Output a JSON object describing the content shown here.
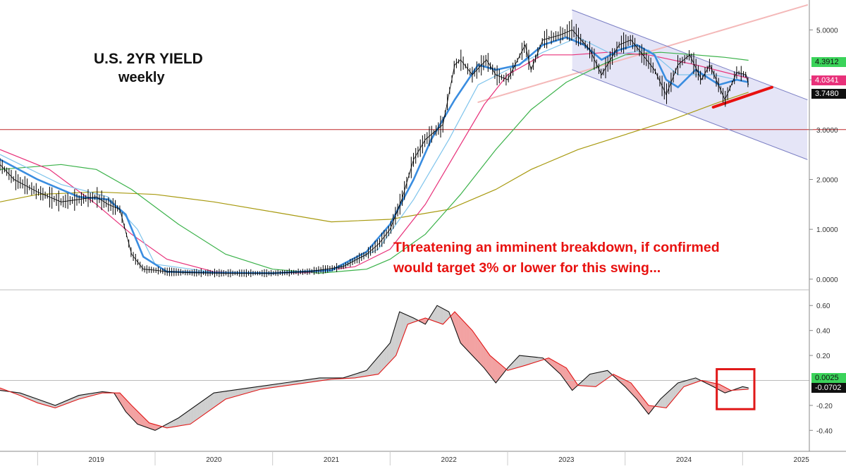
{
  "chart_data": [
    {
      "type": "line",
      "panel": "price",
      "title": "U.S. 2YR YIELD",
      "subtitle": "weekly",
      "ylim": [
        -0.2,
        5.6
      ],
      "y_ticks": [
        "5.0000",
        "4.0000",
        "3.0000",
        "2.0000",
        "1.0000",
        "0.0000"
      ],
      "y_tick_values": [
        5,
        4,
        3,
        2,
        1,
        0
      ],
      "xlim": [
        2018.68,
        2025.55
      ],
      "x_ticks": [
        "2019",
        "2020",
        "2021",
        "2022",
        "2023",
        "2024",
        "2025"
      ],
      "x_tick_values": [
        2019,
        2020,
        2021,
        2022,
        2023,
        2024,
        2025
      ],
      "series": [
        {
          "name": "2YR Yield (weekly)",
          "color": "#000000",
          "x": [
            2018.68,
            2018.8,
            2019.0,
            2019.2,
            2019.35,
            2019.5,
            2019.6,
            2019.7,
            2019.8,
            2019.9,
            2020.0,
            2020.1,
            2020.2,
            2020.3,
            2020.6,
            2020.9,
            2021.0,
            2021.3,
            2021.6,
            2021.8,
            2021.9,
            2022.0,
            2022.1,
            2022.2,
            2022.3,
            2022.45,
            2022.55,
            2022.6,
            2022.7,
            2022.82,
            2022.9,
            2023.0,
            2023.15,
            2023.2,
            2023.3,
            2023.45,
            2023.55,
            2023.7,
            2023.8,
            2023.95,
            2024.05,
            2024.15,
            2024.25,
            2024.35,
            2024.45,
            2024.55,
            2024.65,
            2024.72,
            2024.85,
            2024.95,
            2025.03,
            2025.05
          ],
          "values": [
            2.3,
            2.0,
            1.75,
            1.55,
            1.6,
            1.65,
            1.5,
            1.4,
            0.5,
            0.2,
            0.18,
            0.15,
            0.14,
            0.13,
            0.12,
            0.12,
            0.12,
            0.15,
            0.25,
            0.5,
            0.7,
            1.0,
            1.6,
            2.4,
            2.8,
            3.1,
            4.3,
            4.4,
            4.1,
            4.4,
            4.1,
            4.0,
            4.7,
            4.2,
            4.8,
            4.9,
            5.0,
            4.6,
            4.1,
            4.7,
            4.8,
            4.5,
            4.2,
            3.7,
            4.3,
            4.5,
            4.0,
            4.3,
            3.6,
            4.15,
            4.1,
            3.9
          ]
        },
        {
          "name": "MA fast (blue)",
          "color": "#3a8de0",
          "x": [
            2018.68,
            2019.0,
            2019.35,
            2019.6,
            2019.75,
            2019.9,
            2020.1,
            2020.5,
            2021.0,
            2021.5,
            2021.8,
            2022.0,
            2022.2,
            2022.35,
            2022.55,
            2022.75,
            2022.9,
            2023.1,
            2023.3,
            2023.5,
            2023.65,
            2023.8,
            2023.95,
            2024.1,
            2024.25,
            2024.35,
            2024.45,
            2024.6,
            2024.8,
            2024.95,
            2025.05
          ],
          "values": [
            2.4,
            2.0,
            1.65,
            1.6,
            1.3,
            0.45,
            0.15,
            0.13,
            0.12,
            0.18,
            0.55,
            1.1,
            2.0,
            2.8,
            3.6,
            4.3,
            4.2,
            4.3,
            4.7,
            4.85,
            4.7,
            4.4,
            4.6,
            4.7,
            4.5,
            4.0,
            3.85,
            4.2,
            3.9,
            4.0,
            3.95
          ]
        },
        {
          "name": "MA (light blue)",
          "color": "#7fc4ec",
          "x": [
            2018.68,
            2019.2,
            2019.6,
            2019.85,
            2020.0,
            2020.5,
            2021.0,
            2021.5,
            2021.9,
            2022.2,
            2022.5,
            2022.75,
            2023.0,
            2023.3,
            2023.6,
            2023.9,
            2024.2,
            2024.45,
            2024.75,
            2025.05
          ],
          "values": [
            2.5,
            1.9,
            1.65,
            1.0,
            0.3,
            0.14,
            0.12,
            0.16,
            0.6,
            1.6,
            2.8,
            3.9,
            4.2,
            4.55,
            4.85,
            4.5,
            4.6,
            4.1,
            4.1,
            3.95
          ]
        },
        {
          "name": "MA (magenta)",
          "color": "#e8317a",
          "x": [
            2018.68,
            2019.1,
            2019.5,
            2019.8,
            2020.1,
            2020.5,
            2020.8,
            2021.0,
            2021.3,
            2021.7,
            2022.0,
            2022.3,
            2022.55,
            2022.8,
            2023.0,
            2023.3,
            2023.55,
            2023.85,
            2024.2,
            2024.6,
            2025.05
          ],
          "values": [
            2.6,
            2.2,
            1.5,
            0.9,
            0.4,
            0.15,
            0.12,
            0.12,
            0.13,
            0.25,
            0.6,
            1.5,
            2.5,
            3.5,
            4.1,
            4.5,
            4.5,
            4.55,
            4.5,
            4.3,
            4.03
          ]
        },
        {
          "name": "MA (green)",
          "color": "#3bb24a",
          "x": [
            2018.68,
            2019.2,
            2019.5,
            2019.8,
            2020.2,
            2020.6,
            2021.0,
            2021.4,
            2021.8,
            2022.0,
            2022.3,
            2022.6,
            2022.9,
            2023.2,
            2023.5,
            2023.8,
            2024.0,
            2024.3,
            2024.6,
            2024.85,
            2025.05
          ],
          "values": [
            2.2,
            2.3,
            2.2,
            1.8,
            1.1,
            0.5,
            0.2,
            0.12,
            0.2,
            0.4,
            0.9,
            1.7,
            2.6,
            3.4,
            3.95,
            4.3,
            4.5,
            4.55,
            4.5,
            4.45,
            4.39
          ]
        },
        {
          "name": "MA (olive)",
          "color": "#a89a10",
          "x": [
            2018.68,
            2019.0,
            2019.5,
            2020.0,
            2020.5,
            2021.0,
            2021.5,
            2022.0,
            2022.5,
            2022.9,
            2023.2,
            2023.6,
            2024.0,
            2024.4,
            2024.8,
            2025.05
          ],
          "values": [
            1.55,
            1.7,
            1.75,
            1.7,
            1.55,
            1.35,
            1.15,
            1.2,
            1.4,
            1.8,
            2.2,
            2.6,
            2.9,
            3.2,
            3.55,
            3.75
          ]
        }
      ],
      "trendlines": [
        {
          "name": "Long rising trendline (pink)",
          "color": "#f4b8b8",
          "x": [
            2022.75,
            2025.55
          ],
          "values": [
            3.55,
            5.5
          ]
        },
        {
          "name": "Falling channel upper",
          "color": "#7b7fc4",
          "x": [
            2023.55,
            2025.55
          ],
          "values": [
            5.4,
            3.6
          ]
        },
        {
          "name": "Falling channel lower",
          "color": "#7b7fc4",
          "x": [
            2023.55,
            2025.55
          ],
          "values": [
            4.2,
            2.4
          ]
        },
        {
          "name": "Short support (red)",
          "color": "#e8110f",
          "x": [
            2024.75,
            2025.25
          ],
          "values": [
            3.45,
            3.85
          ]
        }
      ],
      "horizontal_line": {
        "value": 3.0,
        "color": "#c0282a"
      },
      "last_value_labels": [
        {
          "text": "4.3912",
          "value": 4.3912,
          "bg": "#3bd35a"
        },
        {
          "text": "4.0341",
          "value": 4.0341,
          "bg": "#e8317a"
        },
        {
          "text": "3.7480",
          "value": 3.748,
          "bg": "#101010"
        }
      ]
    },
    {
      "type": "line",
      "panel": "oscillator",
      "ylim": [
        -0.5,
        0.72
      ],
      "y_ticks": [
        "0.60",
        "0.40",
        "0.20",
        "-0.20",
        "-0.40"
      ],
      "y_tick_values": [
        0.6,
        0.4,
        0.2,
        -0.2,
        -0.4
      ],
      "zero_line": 0,
      "series": [
        {
          "name": "Oscillator (black)",
          "color": "#111111",
          "x": [
            2018.68,
            2018.85,
            2019.0,
            2019.15,
            2019.35,
            2019.55,
            2019.65,
            2019.75,
            2019.85,
            2020.0,
            2020.2,
            2020.5,
            2020.8,
            2021.1,
            2021.4,
            2021.6,
            2021.8,
            2022.0,
            2022.08,
            2022.2,
            2022.3,
            2022.4,
            2022.5,
            2022.6,
            2022.7,
            2022.8,
            2022.9,
            2023.0,
            2023.1,
            2023.3,
            2023.45,
            2023.55,
            2023.7,
            2023.85,
            2024.0,
            2024.1,
            2024.2,
            2024.3,
            2024.45,
            2024.6,
            2024.75,
            2024.85,
            2025.0,
            2025.05
          ],
          "values": [
            -0.08,
            -0.1,
            -0.15,
            -0.2,
            -0.12,
            -0.09,
            -0.1,
            -0.25,
            -0.35,
            -0.4,
            -0.3,
            -0.1,
            -0.06,
            -0.02,
            0.02,
            0.02,
            0.08,
            0.3,
            0.55,
            0.5,
            0.45,
            0.6,
            0.55,
            0.3,
            0.2,
            0.1,
            -0.02,
            0.1,
            0.2,
            0.18,
            0.05,
            -0.08,
            0.05,
            0.08,
            -0.05,
            -0.15,
            -0.27,
            -0.15,
            -0.02,
            0.02,
            -0.05,
            -0.1,
            -0.05,
            -0.06
          ]
        },
        {
          "name": "Signal (red)",
          "color": "#e01818",
          "x": [
            2018.68,
            2018.85,
            2019.0,
            2019.15,
            2019.35,
            2019.55,
            2019.7,
            2019.8,
            2019.95,
            2020.1,
            2020.3,
            2020.6,
            2020.9,
            2021.2,
            2021.5,
            2021.7,
            2021.9,
            2022.05,
            2022.15,
            2022.3,
            2022.45,
            2022.55,
            2022.7,
            2022.85,
            2023.0,
            2023.15,
            2023.35,
            2023.5,
            2023.6,
            2023.75,
            2023.9,
            2024.05,
            2024.2,
            2024.35,
            2024.5,
            2024.65,
            2024.8,
            2024.9,
            2025.05
          ],
          "values": [
            -0.06,
            -0.12,
            -0.18,
            -0.22,
            -0.15,
            -0.1,
            -0.1,
            -0.2,
            -0.34,
            -0.38,
            -0.35,
            -0.15,
            -0.07,
            -0.03,
            0.01,
            0.02,
            0.05,
            0.2,
            0.45,
            0.5,
            0.45,
            0.55,
            0.4,
            0.2,
            0.08,
            0.12,
            0.18,
            0.1,
            -0.04,
            -0.05,
            0.05,
            -0.02,
            -0.2,
            -0.22,
            -0.05,
            0.0,
            -0.03,
            -0.08,
            -0.07
          ]
        }
      ],
      "last_value_labels": [
        {
          "text": "0.0025",
          "value": 0.0025,
          "bg": "#3bd35a"
        },
        {
          "text": "-0.0702",
          "value": -0.0702,
          "bg": "#101010"
        }
      ],
      "highlight_box": {
        "x_range": [
          2024.78,
          2025.1
        ],
        "y_range": [
          -0.23,
          0.09
        ],
        "color": "#e01818"
      }
    }
  ],
  "labels": {
    "title": "U.S. 2YR YIELD",
    "subtitle": "weekly",
    "annotation_line1": "Threatening an imminent breakdown, if confirmed",
    "annotation_line2": "would target 3% or lower for this swing..."
  }
}
